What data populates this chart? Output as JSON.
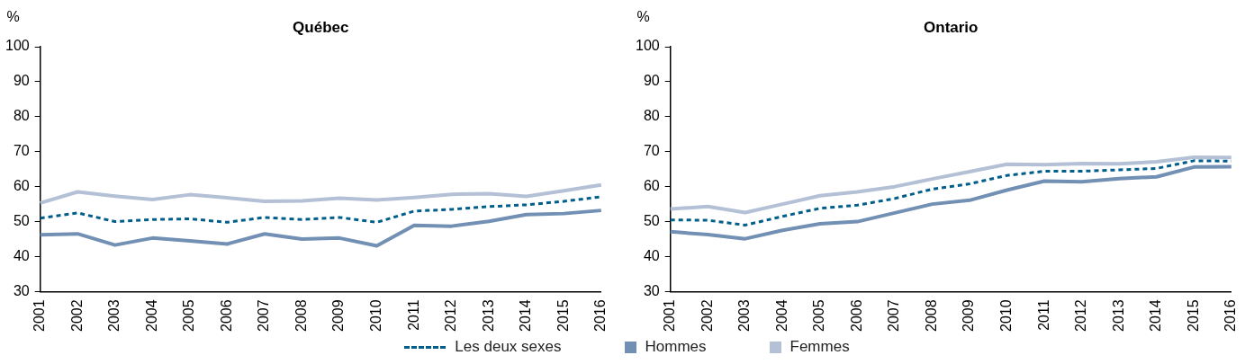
{
  "chart_data": [
    {
      "type": "line",
      "title": "Québec",
      "ylabel": "%",
      "categories": [
        "2001",
        "2002",
        "2003",
        "2004",
        "2005",
        "2006",
        "2007",
        "2008",
        "2009",
        "2010",
        "2011",
        "2012",
        "2013",
        "2014",
        "2015",
        "2016"
      ],
      "ylim": [
        30,
        100
      ],
      "yticks": [
        30,
        40,
        50,
        60,
        70,
        80,
        90,
        100
      ],
      "grid": false,
      "legend": "bottom",
      "marker": "none",
      "series": [
        {
          "name": "Les deux sexes",
          "color": "#005f8a",
          "line_style": "dashed",
          "values": [
            51.0,
            52.5,
            50.0,
            50.6,
            50.8,
            49.8,
            51.2,
            50.6,
            51.2,
            49.8,
            53.0,
            53.5,
            54.3,
            54.8,
            55.8,
            57.1
          ]
        },
        {
          "name": "Hommes",
          "color": "#7290b4",
          "line_style": "solid",
          "values": [
            46.2,
            46.5,
            43.3,
            45.3,
            44.5,
            43.6,
            46.5,
            45.0,
            45.3,
            43.1,
            48.9,
            48.7,
            50.1,
            52.0,
            52.3,
            53.2
          ]
        },
        {
          "name": "Femmes",
          "color": "#b4c0d6",
          "line_style": "solid",
          "values": [
            55.3,
            58.5,
            57.3,
            56.3,
            57.7,
            56.8,
            55.8,
            55.9,
            56.7,
            56.2,
            56.9,
            57.8,
            58.0,
            57.2,
            58.8,
            60.5
          ]
        }
      ]
    },
    {
      "type": "line",
      "title": "Ontario",
      "ylabel": "%",
      "categories": [
        "2001",
        "2002",
        "2003",
        "2004",
        "2005",
        "2006",
        "2007",
        "2008",
        "2009",
        "2010",
        "2011",
        "2012",
        "2013",
        "2014",
        "2015",
        "2016"
      ],
      "ylim": [
        30,
        100
      ],
      "yticks": [
        30,
        40,
        50,
        60,
        70,
        80,
        90,
        100
      ],
      "grid": false,
      "legend": "bottom",
      "marker": "none",
      "series": [
        {
          "name": "Les deux sexes",
          "color": "#005f8a",
          "line_style": "dashed",
          "values": [
            50.5,
            50.4,
            49.0,
            51.5,
            53.8,
            54.7,
            56.6,
            59.3,
            60.8,
            63.2,
            64.4,
            64.4,
            64.8,
            65.2,
            67.4,
            67.3
          ]
        },
        {
          "name": "Hommes",
          "color": "#7290b4",
          "line_style": "solid",
          "values": [
            47.1,
            46.3,
            45.1,
            47.5,
            49.4,
            50.0,
            52.5,
            55.0,
            56.1,
            59.0,
            61.6,
            61.4,
            62.3,
            62.8,
            65.6,
            65.7
          ]
        },
        {
          "name": "Femmes",
          "color": "#b4c0d6",
          "line_style": "solid",
          "values": [
            53.6,
            54.3,
            52.6,
            55.0,
            57.4,
            58.5,
            60.0,
            62.2,
            64.3,
            66.4,
            66.3,
            66.6,
            66.5,
            67.1,
            68.4,
            68.3
          ]
        }
      ]
    }
  ]
}
